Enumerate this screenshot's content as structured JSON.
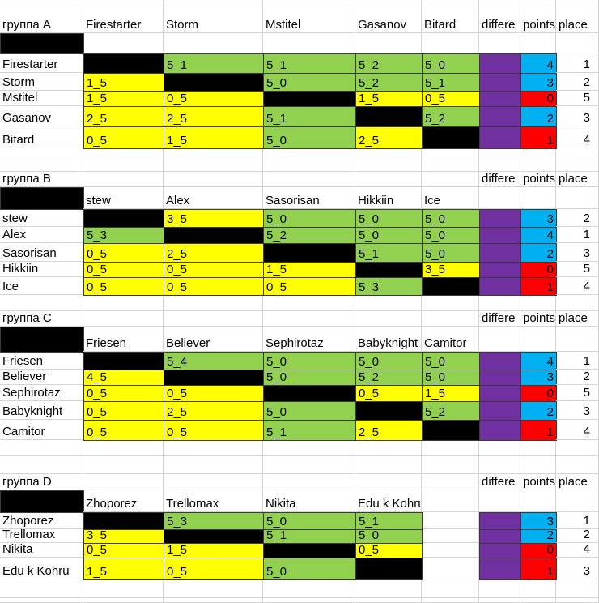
{
  "groups": [
    {
      "title": "группа A",
      "columns": [
        "differe",
        "points",
        "place"
      ],
      "players": [
        "Firestarter",
        "Storm",
        "Mstitel",
        "Gasanov",
        "Bitard"
      ],
      "rows": [
        {
          "scores": [
            null,
            "5_1",
            "5_1",
            "5_2",
            "5_0"
          ],
          "points": 4,
          "place": 1
        },
        {
          "scores": [
            "1_5",
            null,
            "5_0",
            "5_2",
            "5_1"
          ],
          "points": 3,
          "place": 2
        },
        {
          "scores": [
            "1_5",
            "0_5",
            null,
            "1_5",
            "0_5"
          ],
          "points": 0,
          "place": 5
        },
        {
          "scores": [
            "2_5",
            "2_5",
            "5_1",
            null,
            "5_2"
          ],
          "points": 2,
          "place": 3
        },
        {
          "scores": [
            "0_5",
            "1_5",
            "5_0",
            "2_5",
            null
          ],
          "points": 1,
          "place": 4
        }
      ]
    },
    {
      "title": "группа B",
      "columns": [
        "differe",
        "points",
        "place"
      ],
      "players": [
        "stew",
        "Alex",
        "Sasorisan",
        "Hikkiin",
        "Ice"
      ],
      "rows": [
        {
          "scores": [
            null,
            "3_5",
            "5_0",
            "5_0",
            "5_0"
          ],
          "points": 3,
          "place": 2
        },
        {
          "scores": [
            "5_3",
            null,
            "5_2",
            "5_0",
            "5_0"
          ],
          "points": 4,
          "place": 1
        },
        {
          "scores": [
            "0_5",
            "2_5",
            null,
            "5_1",
            "5_0"
          ],
          "points": 2,
          "place": 3
        },
        {
          "scores": [
            "0_5",
            "0_5",
            "1_5",
            null,
            "3_5"
          ],
          "points": 0,
          "place": 5
        },
        {
          "scores": [
            "0_5",
            "0_5",
            "0_5",
            "5_3",
            null
          ],
          "points": 1,
          "place": 4
        }
      ]
    },
    {
      "title": "группа C",
      "columns": [
        "differe",
        "points",
        "place"
      ],
      "players": [
        "Friesen",
        "Believer",
        "Sephirotaz",
        "Babyknight",
        "Camitor"
      ],
      "rows": [
        {
          "scores": [
            null,
            "5_4",
            "5_0",
            "5_0",
            "5_0"
          ],
          "points": 4,
          "place": 1
        },
        {
          "scores": [
            "4_5",
            null,
            "5_0",
            "5_2",
            "5_0"
          ],
          "points": 3,
          "place": 2
        },
        {
          "scores": [
            "0_5",
            "0_5",
            null,
            "0_5",
            "1_5"
          ],
          "points": 0,
          "place": 5
        },
        {
          "scores": [
            "0_5",
            "2_5",
            "5_0",
            null,
            "5_2"
          ],
          "points": 2,
          "place": 3
        },
        {
          "scores": [
            "0_5",
            "0_5",
            "5_1",
            "2_5",
            null
          ],
          "points": 1,
          "place": 4
        }
      ]
    },
    {
      "title": "группа D",
      "columns": [
        "differe",
        "points",
        "place"
      ],
      "players": [
        "Zhoporez",
        "Trellomax",
        "Nikita",
        "Edu k Kohru"
      ],
      "rows": [
        {
          "scores": [
            null,
            "5_3",
            "5_0",
            "5_1"
          ],
          "points": 3,
          "place": 1
        },
        {
          "scores": [
            "3_5",
            null,
            "5_1",
            "5_0"
          ],
          "points": 2,
          "place": 2
        },
        {
          "scores": [
            "0_5",
            "1_5",
            null,
            "0_5"
          ],
          "points": 0,
          "place": 4
        },
        {
          "scores": [
            "1_5",
            "0_5",
            "5_0",
            null
          ],
          "points": 1,
          "place": 3
        }
      ]
    }
  ]
}
